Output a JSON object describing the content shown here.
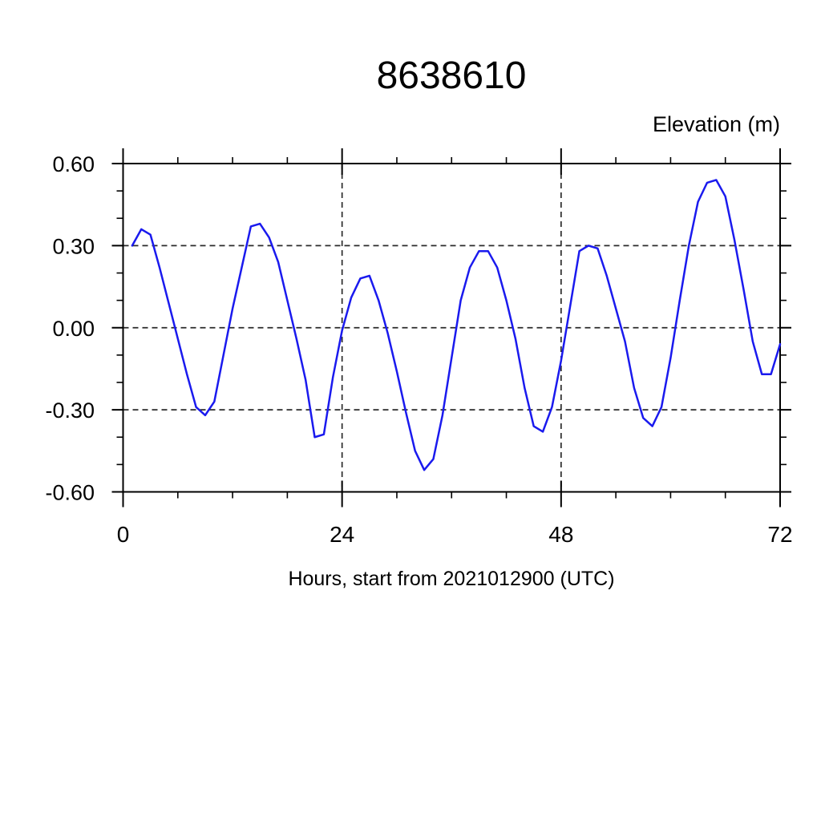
{
  "title": "8638610",
  "chart_data": {
    "type": "line",
    "title": "8638610",
    "xlabel": "Hours, start from 2021012900 (UTC)",
    "ylabel": "Elevation (m)",
    "xlim": [
      0,
      72
    ],
    "ylim": [
      -0.6,
      0.6
    ],
    "xticks": [
      0,
      24,
      48,
      72
    ],
    "xtick_labels": [
      "0",
      "24",
      "48",
      "72"
    ],
    "x_minor_step": 6,
    "yticks": [
      0.6,
      0.3,
      0.0,
      -0.3,
      -0.6
    ],
    "ytick_labels": [
      "0.60",
      "0.30",
      "0.00",
      "-0.30",
      "-0.60"
    ],
    "y_minor_step": 0.1,
    "grid": true,
    "legend_position": "none",
    "line_color": "#1a1aee",
    "grid_color": "#2b2b2b",
    "frame_color": "#000000",
    "series": [
      {
        "name": "elevation",
        "x_start": 1,
        "x_step": 1,
        "values": [
          0.3,
          0.36,
          0.34,
          0.22,
          0.09,
          -0.04,
          -0.17,
          -0.29,
          -0.32,
          -0.27,
          -0.1,
          0.07,
          0.22,
          0.37,
          0.38,
          0.33,
          0.24,
          0.1,
          -0.04,
          -0.19,
          -0.4,
          -0.39,
          -0.18,
          -0.01,
          0.11,
          0.18,
          0.19,
          0.1,
          -0.02,
          -0.16,
          -0.31,
          -0.45,
          -0.52,
          -0.48,
          -0.32,
          -0.11,
          0.1,
          0.22,
          0.28,
          0.28,
          0.22,
          0.1,
          -0.04,
          -0.22,
          -0.36,
          -0.38,
          -0.29,
          -0.12,
          0.08,
          0.28,
          0.3,
          0.29,
          0.19,
          0.07,
          -0.05,
          -0.22,
          -0.33,
          -0.36,
          -0.29,
          -0.11,
          0.1,
          0.3,
          0.46,
          0.53,
          0.54,
          0.48,
          0.32,
          0.14,
          -0.05,
          -0.17,
          -0.17,
          -0.06
        ]
      }
    ]
  }
}
